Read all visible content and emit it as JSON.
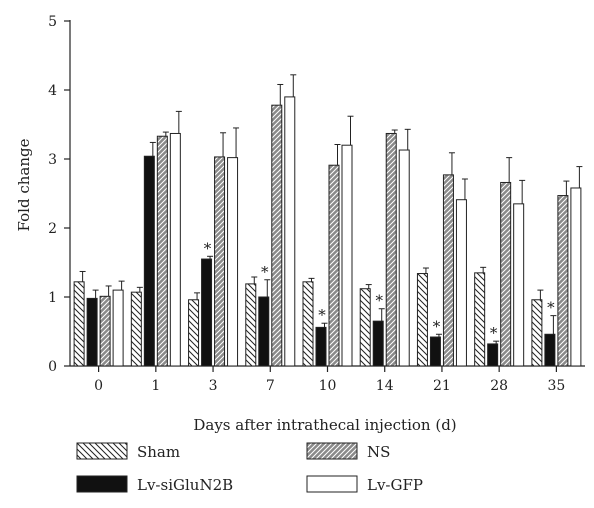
{
  "chart_data": {
    "type": "bar",
    "title": "",
    "xlabel": "Days after intrathecal injection (d)",
    "ylabel": "Fold change",
    "ylim": [
      0,
      5
    ],
    "yticks": [
      "0",
      "1",
      "2",
      "3",
      "4",
      "5"
    ],
    "categories": [
      "0",
      "1",
      "3",
      "7",
      "10",
      "14",
      "21",
      "28",
      "35"
    ],
    "series": [
      {
        "name": "Sham",
        "pattern": "hatch-back",
        "values": [
          1.22,
          1.07,
          0.96,
          1.19,
          1.22,
          1.12,
          1.34,
          1.35,
          0.96
        ],
        "errors": [
          0.15,
          0.07,
          0.1,
          0.1,
          0.05,
          0.06,
          0.08,
          0.08,
          0.14
        ]
      },
      {
        "name": "Lv-siGluN2B",
        "pattern": "solid",
        "values": [
          0.98,
          3.04,
          1.55,
          1.0,
          0.56,
          0.65,
          0.42,
          0.32,
          0.46
        ],
        "errors": [
          0.12,
          0.2,
          0.04,
          0.25,
          0.06,
          0.18,
          0.04,
          0.04,
          0.27
        ]
      },
      {
        "name": "NS",
        "pattern": "hatch-forward",
        "values": [
          1.01,
          3.33,
          3.03,
          3.78,
          2.91,
          3.37,
          2.77,
          2.66,
          2.47
        ],
        "errors": [
          0.15,
          0.06,
          0.35,
          0.3,
          0.3,
          0.05,
          0.32,
          0.36,
          0.21
        ]
      },
      {
        "name": "Lv-GFP",
        "pattern": "empty",
        "values": [
          1.1,
          3.37,
          3.02,
          3.9,
          3.2,
          3.13,
          2.41,
          2.35,
          2.58
        ],
        "errors": [
          0.13,
          0.32,
          0.43,
          0.32,
          0.42,
          0.3,
          0.3,
          0.34,
          0.31
        ]
      }
    ],
    "significance": {
      "series": "Lv-siGluN2B",
      "marker": "*",
      "categories": [
        "3",
        "7",
        "10",
        "14",
        "21",
        "28",
        "35"
      ]
    },
    "legend": {
      "placement": "bottom",
      "columns": 2
    }
  }
}
